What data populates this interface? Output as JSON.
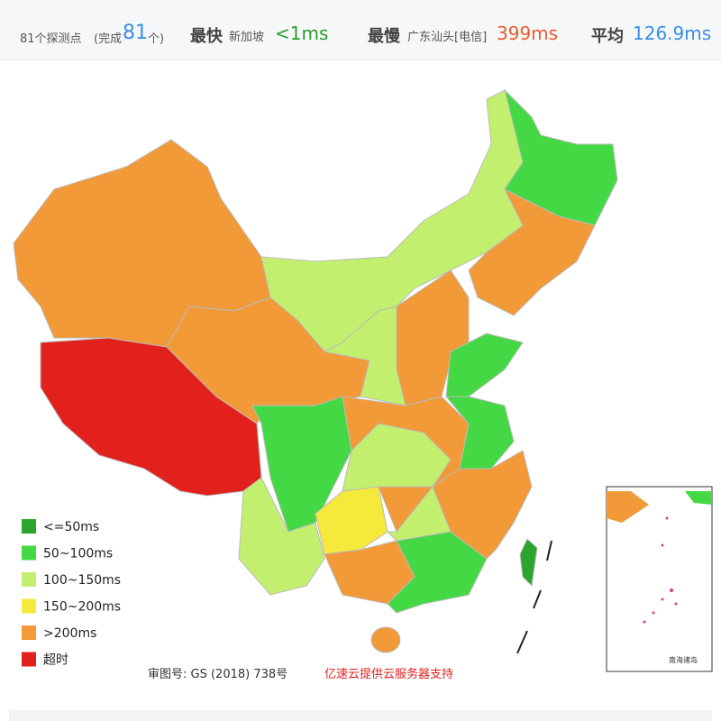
{
  "header": {
    "probe_count": "81个探测点",
    "completed_prefix": "(完成",
    "completed": "81",
    "completed_suffix": "个)",
    "fastest": {
      "label": "最快",
      "location": "新加坡",
      "value": "<1ms"
    },
    "slowest": {
      "label": "最慢",
      "location": "广东汕头[电信]",
      "value": "399ms"
    },
    "average": {
      "label": "平均",
      "value": "126.9ms"
    }
  },
  "legend": [
    {
      "label": "<=50ms",
      "color": "#2ca52c"
    },
    {
      "label": "50~100ms",
      "color": "#44d944"
    },
    {
      "label": "100~150ms",
      "color": "#c2f06e"
    },
    {
      "label": "150~200ms",
      "color": "#f5e93c"
    },
    {
      "label": ">200ms",
      "color": "#f29a38"
    },
    {
      "label": "超时",
      "color": "#e2201c"
    }
  ],
  "footer": {
    "approval": "审图号: GS (2018) 738号",
    "sponsor": "亿速云提供云服务器支持"
  },
  "inset": {
    "label": "南海诸岛"
  }
}
